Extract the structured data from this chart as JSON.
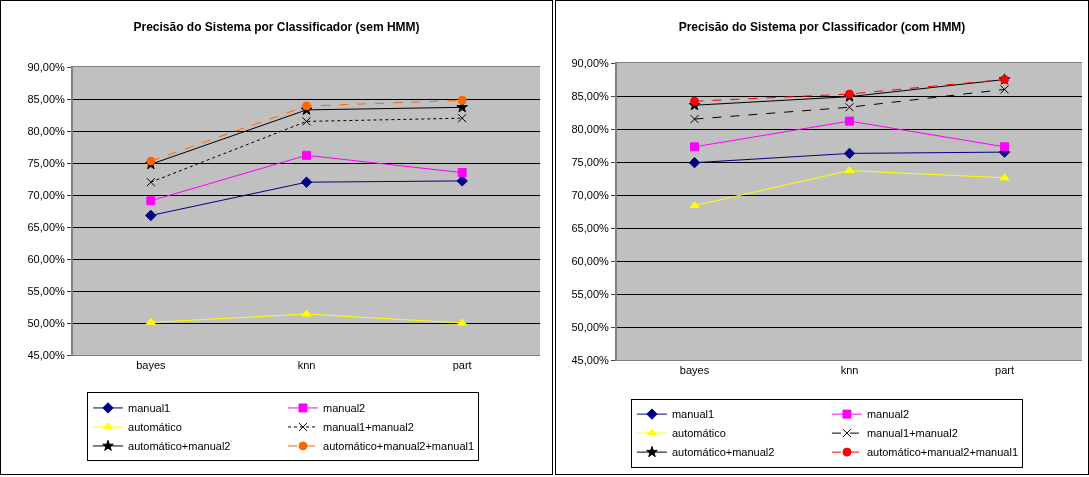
{
  "chart_data": [
    {
      "type": "line",
      "title": "Precisão do Sistema por Classificador (sem HMM)",
      "categories": [
        "bayes",
        "knn",
        "part"
      ],
      "ylim": [
        45,
        90
      ],
      "yticks": [
        {
          "value": 45,
          "label": "45,00%"
        },
        {
          "value": 50,
          "label": "50,00%"
        },
        {
          "value": 55,
          "label": "55,00%"
        },
        {
          "value": 60,
          "label": "60,00%"
        },
        {
          "value": 65,
          "label": "65,00%"
        },
        {
          "value": 70,
          "label": "70,00%"
        },
        {
          "value": 75,
          "label": "75,00%"
        },
        {
          "value": 80,
          "label": "80,00%"
        },
        {
          "value": 85,
          "label": "85,00%"
        },
        {
          "value": 90,
          "label": "90,00%"
        }
      ],
      "grid": "y",
      "legend": "bottom",
      "series": [
        {
          "name": "manual1",
          "color": "#000080",
          "marker": "diamond",
          "line_style": "solid",
          "values": [
            66.8,
            72.0,
            72.2
          ]
        },
        {
          "name": "manual2",
          "color": "#ff00ff",
          "marker": "square",
          "line_style": "solid",
          "values": [
            69.1,
            76.2,
            73.5
          ]
        },
        {
          "name": "automático",
          "color": "#ffff00",
          "marker": "triangle",
          "line_style": "solid",
          "values": [
            50.1,
            51.4,
            50.0
          ]
        },
        {
          "name": "manual1+manual2",
          "color": "#000000",
          "marker": "cross",
          "line_style": "dotted",
          "values": [
            72.0,
            81.5,
            82.0
          ]
        },
        {
          "name": "automático+manual2",
          "color": "#000000",
          "marker": "star",
          "line_style": "solid",
          "values": [
            74.8,
            83.3,
            83.7
          ]
        },
        {
          "name": "automático+manual2+manual1",
          "color": "#ff6600",
          "marker": "circle",
          "line_style": "dashed",
          "values": [
            75.3,
            83.9,
            84.8
          ]
        }
      ]
    },
    {
      "type": "line",
      "title": "Precisão do Sistema por Classificador (com HMM)",
      "categories": [
        "bayes",
        "knn",
        "part"
      ],
      "ylim": [
        45,
        90
      ],
      "yticks": [
        {
          "value": 45,
          "label": "45,00%"
        },
        {
          "value": 50,
          "label": "50,00%"
        },
        {
          "value": 55,
          "label": "55,00%"
        },
        {
          "value": 60,
          "label": "60,00%"
        },
        {
          "value": 65,
          "label": "65,00%"
        },
        {
          "value": 70,
          "label": "70,00%"
        },
        {
          "value": 75,
          "label": "75,00%"
        },
        {
          "value": 80,
          "label": "80,00%"
        },
        {
          "value": 85,
          "label": "85,00%"
        },
        {
          "value": 90,
          "label": "90,00%"
        }
      ],
      "grid": "y",
      "legend": "bottom",
      "series": [
        {
          "name": "manual1",
          "color": "#000080",
          "marker": "diamond",
          "line_style": "solid",
          "values": [
            74.9,
            76.3,
            76.5
          ]
        },
        {
          "name": "manual2",
          "color": "#ff00ff",
          "marker": "square",
          "line_style": "solid",
          "values": [
            77.3,
            81.2,
            77.3
          ]
        },
        {
          "name": "automático",
          "color": "#ffff00",
          "marker": "triangle",
          "line_style": "solid",
          "values": [
            68.4,
            73.7,
            72.6
          ]
        },
        {
          "name": "manual1+manual2",
          "color": "#000000",
          "marker": "cross",
          "line_style": "dashed",
          "values": [
            81.5,
            83.3,
            86.0
          ]
        },
        {
          "name": "automático+manual2",
          "color": "#000000",
          "marker": "star",
          "line_style": "solid",
          "values": [
            83.6,
            84.9,
            87.5
          ]
        },
        {
          "name": "automático+manual2+manual1",
          "color": "#ff0000",
          "marker": "circle",
          "line_style": "dashed",
          "values": [
            84.2,
            85.3,
            87.5
          ]
        }
      ]
    }
  ]
}
